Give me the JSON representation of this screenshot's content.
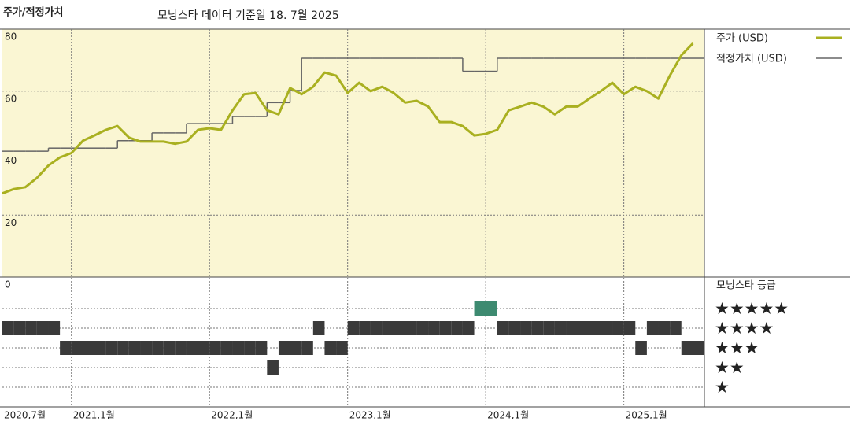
{
  "chart_data": [
    {
      "type": "line",
      "title": "주가/적정가치",
      "subtitle": "모닝스타 데이터 기준일 18. 7월 2025",
      "x": [
        "2020-07",
        "2020-08",
        "2020-09",
        "2020-10",
        "2020-11",
        "2020-12",
        "2021-01",
        "2021-02",
        "2021-03",
        "2021-04",
        "2021-05",
        "2021-06",
        "2021-07",
        "2021-08",
        "2021-09",
        "2021-10",
        "2021-11",
        "2021-12",
        "2022-01",
        "2022-02",
        "2022-03",
        "2022-04",
        "2022-05",
        "2022-06",
        "2022-07",
        "2022-08",
        "2022-09",
        "2022-10",
        "2022-11",
        "2022-12",
        "2023-01",
        "2023-02",
        "2023-03",
        "2023-04",
        "2023-05",
        "2023-06",
        "2023-07",
        "2023-08",
        "2023-09",
        "2023-10",
        "2023-11",
        "2023-12",
        "2024-01",
        "2024-02",
        "2024-03",
        "2024-04",
        "2024-05",
        "2024-06",
        "2024-07",
        "2024-08",
        "2024-09",
        "2024-10",
        "2024-11",
        "2024-12",
        "2025-01",
        "2025-02",
        "2025-03",
        "2025-04",
        "2025-05",
        "2025-06",
        "2025-07"
      ],
      "series": [
        {
          "name": "주가 (USD)",
          "color": "#a9b020",
          "style": "line",
          "values": [
            27,
            28.4,
            29,
            32,
            36,
            38.6,
            40,
            44,
            45.7,
            47.5,
            48.7,
            45,
            43.7,
            43.7,
            43.7,
            43,
            43.7,
            47.5,
            48,
            47.5,
            53.8,
            59,
            59.4,
            53.8,
            52.5,
            61,
            59,
            61.4,
            66,
            65,
            59.4,
            62.7,
            60,
            61.4,
            59.4,
            56.3,
            56.9,
            55,
            50,
            50,
            48.7,
            45.7,
            46.2,
            47.5,
            53.8,
            55,
            56.3,
            55,
            52.5,
            55,
            55,
            57.6,
            60,
            62.7,
            59,
            61.4,
            60,
            57.6,
            65,
            71.6,
            75.4
          ]
        },
        {
          "name": "적정가치 (USD)",
          "color": "#666666",
          "style": "step",
          "values": [
            40.6,
            40.6,
            40.6,
            40.6,
            41.6,
            41.6,
            41.6,
            41.6,
            41.6,
            41.6,
            44,
            44,
            44,
            46.5,
            46.5,
            46.5,
            49.5,
            49.5,
            49.5,
            49.5,
            51.8,
            51.8,
            51.8,
            56.3,
            56.3,
            60.2,
            70.6,
            70.6,
            70.6,
            70.6,
            70.6,
            70.6,
            70.6,
            70.6,
            70.6,
            70.6,
            70.6,
            70.6,
            70.6,
            70.6,
            66.4,
            66.4,
            66.4,
            70.6,
            70.6,
            70.6,
            70.6,
            70.6,
            70.6,
            70.6,
            70.6,
            70.6,
            70.6,
            70.6,
            70.6,
            70.6,
            70.6,
            70.6,
            70.6,
            70.6,
            70.6
          ]
        }
      ],
      "xlim": [
        "2020-07",
        "2025-08"
      ],
      "xticks": [
        {
          "value": "2020-07",
          "label": "2020,7월"
        },
        {
          "value": "2021-01",
          "label": "2021,1월"
        },
        {
          "value": "2022-01",
          "label": "2022,1월"
        },
        {
          "value": "2023-01",
          "label": "2023,1월"
        },
        {
          "value": "2024-01",
          "label": "2024,1월"
        },
        {
          "value": "2025-01",
          "label": "2025,1월"
        }
      ],
      "ylim": [
        0,
        80
      ],
      "yticks": [
        0,
        20,
        40,
        60,
        80
      ],
      "grid": true,
      "background": "#faf6d3"
    },
    {
      "type": "rating",
      "title": "모닝스타 등급",
      "values": [
        4,
        4,
        4,
        4,
        4,
        3,
        3,
        3,
        3,
        3,
        3,
        3,
        3,
        3,
        3,
        3,
        3,
        3,
        3,
        3,
        3,
        3,
        3,
        2,
        3,
        3,
        3,
        4,
        3,
        3,
        4,
        4,
        4,
        4,
        4,
        4,
        4,
        4,
        4,
        4,
        4,
        5,
        5,
        4,
        4,
        4,
        4,
        4,
        4,
        4,
        4,
        4,
        4,
        4,
        4,
        3,
        4,
        4,
        4,
        3,
        3
      ],
      "levels": [
        {
          "value": 5,
          "label": "★★★★★"
        },
        {
          "value": 4,
          "label": "★★★★"
        },
        {
          "value": 3,
          "label": "★★★"
        },
        {
          "value": 2,
          "label": "★★"
        },
        {
          "value": 1,
          "label": "★"
        }
      ],
      "color": "#3a3a3a",
      "top_color": "#3d8a70"
    }
  ]
}
